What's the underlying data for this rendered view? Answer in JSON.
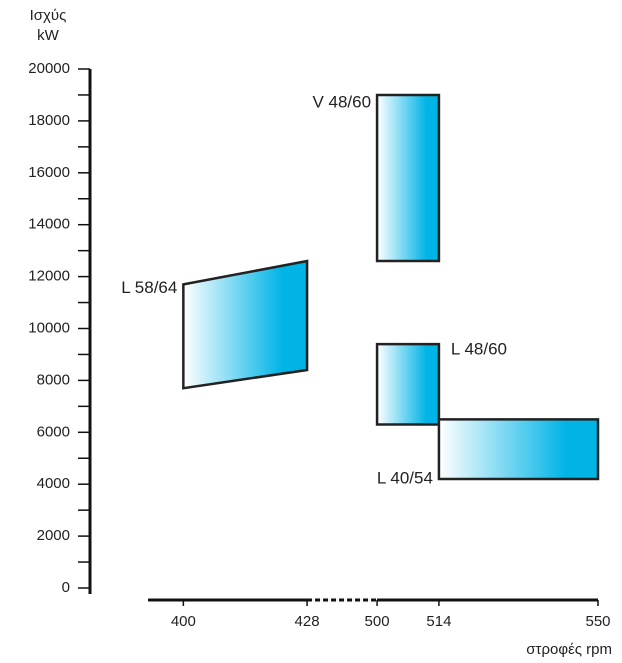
{
  "chart_data": {
    "type": "polygon",
    "ylabel": "Ισχύς",
    "yunit": "kW",
    "xlabel": "στροφές rpm",
    "ylim": [
      0,
      20000
    ],
    "yticks": [
      0,
      2000,
      4000,
      6000,
      8000,
      10000,
      12000,
      14000,
      16000,
      18000,
      20000
    ],
    "yminorticks": [
      1000,
      3000,
      5000,
      7000,
      9000,
      11000,
      13000,
      15000,
      17000,
      19000
    ],
    "xlim": [
      392,
      550
    ],
    "xbreak": [
      428,
      500
    ],
    "xticks": [
      400,
      428,
      500,
      514,
      550
    ],
    "gradient": [
      "#ffffff",
      "#00b4e6"
    ],
    "series": [
      {
        "name": "V 48/60",
        "x": [
          500,
          514,
          514,
          500
        ],
        "y": [
          19000,
          19000,
          12600,
          12600
        ]
      },
      {
        "name": "L 58/64",
        "x": [
          400,
          428,
          428,
          400
        ],
        "y": [
          11700,
          12600,
          8400,
          7700
        ]
      },
      {
        "name": "L 48/60",
        "x": [
          500,
          514,
          514,
          500
        ],
        "y": [
          9400,
          9400,
          6300,
          6300
        ]
      },
      {
        "name": "L 40/54",
        "x": [
          514,
          550,
          550,
          514
        ],
        "y": [
          6500,
          6500,
          4200,
          4200
        ]
      }
    ]
  }
}
